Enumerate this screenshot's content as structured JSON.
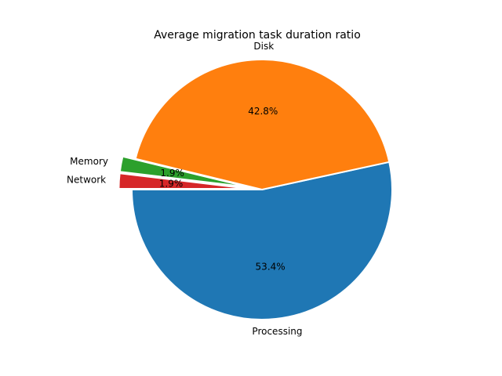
{
  "chart_data": {
    "type": "pie",
    "title": "Average migration task duration ratio",
    "slices": [
      {
        "label": "Processing",
        "value": 53.4,
        "pct_label": "53.4%",
        "color": "#1f77b4",
        "exploded": false
      },
      {
        "label": "Disk",
        "value": 42.8,
        "pct_label": "42.8%",
        "color": "#ff7f0e",
        "exploded": false
      },
      {
        "label": "Memory",
        "value": 1.9,
        "pct_label": "1.9%",
        "color": "#2ca02c",
        "exploded": true
      },
      {
        "label": "Network",
        "value": 1.9,
        "pct_label": "1.9%",
        "color": "#d62728",
        "exploded": true
      }
    ],
    "start_angle": "180°, counterclockwise",
    "legend": "none"
  }
}
